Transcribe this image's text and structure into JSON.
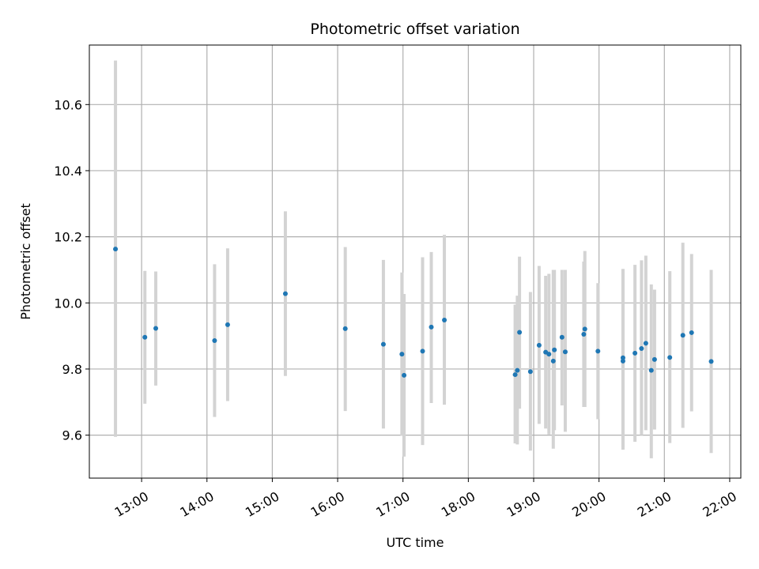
{
  "chart_data": {
    "type": "scatter",
    "title": "Photometric offset variation",
    "xlabel": "UTC time",
    "ylabel": "Photometric offset",
    "xlim_hours": [
      12.2,
      22.17
    ],
    "ylim": [
      9.47,
      10.78
    ],
    "x_ticks": [
      {
        "hour": 13,
        "label": "13:00"
      },
      {
        "hour": 14,
        "label": "14:00"
      },
      {
        "hour": 15,
        "label": "15:00"
      },
      {
        "hour": 16,
        "label": "16:00"
      },
      {
        "hour": 17,
        "label": "17:00"
      },
      {
        "hour": 18,
        "label": "18:00"
      },
      {
        "hour": 19,
        "label": "19:00"
      },
      {
        "hour": 20,
        "label": "20:00"
      },
      {
        "hour": 21,
        "label": "21:00"
      },
      {
        "hour": 22,
        "label": "22:00"
      }
    ],
    "y_ticks": [
      {
        "value": 9.6,
        "label": "9.6"
      },
      {
        "value": 9.8,
        "label": "9.8"
      },
      {
        "value": 10.0,
        "label": "10.0"
      },
      {
        "value": 10.2,
        "label": "10.2"
      },
      {
        "value": 10.4,
        "label": "10.4"
      },
      {
        "value": 10.6,
        "label": "10.6"
      }
    ],
    "grid": true,
    "colors": {
      "point": "#1f77b4",
      "errorbar": "#d3d3d3",
      "grid": "#b0b0b0"
    },
    "points": [
      {
        "x": "12:36",
        "y": 10.163,
        "err_low": 9.595,
        "err_high": 10.733
      },
      {
        "x": "13:03",
        "y": 9.896,
        "err_low": 9.695,
        "err_high": 10.097
      },
      {
        "x": "13:13",
        "y": 9.923,
        "err_low": 9.75,
        "err_high": 10.095
      },
      {
        "x": "14:07",
        "y": 9.886,
        "err_low": 9.655,
        "err_high": 10.117
      },
      {
        "x": "14:19",
        "y": 9.934,
        "err_low": 9.703,
        "err_high": 10.165
      },
      {
        "x": "15:12",
        "y": 10.028,
        "err_low": 9.779,
        "err_high": 10.277
      },
      {
        "x": "16:07",
        "y": 9.922,
        "err_low": 9.673,
        "err_high": 10.169
      },
      {
        "x": "16:42",
        "y": 9.875,
        "err_low": 9.62,
        "err_high": 10.13
      },
      {
        "x": "16:59",
        "y": 9.845,
        "err_low": 9.598,
        "err_high": 10.092
      },
      {
        "x": "17:01",
        "y": 9.781,
        "err_low": 9.535,
        "err_high": 10.027
      },
      {
        "x": "17:18",
        "y": 9.854,
        "err_low": 9.57,
        "err_high": 10.138
      },
      {
        "x": "17:26",
        "y": 9.927,
        "err_low": 9.697,
        "err_high": 10.154
      },
      {
        "x": "17:38",
        "y": 9.948,
        "err_low": 9.692,
        "err_high": 10.206
      },
      {
        "x": "18:43",
        "y": 9.783,
        "err_low": 9.575,
        "err_high": 9.995
      },
      {
        "x": "18:45",
        "y": 9.796,
        "err_low": 9.572,
        "err_high": 10.022
      },
      {
        "x": "18:47",
        "y": 9.911,
        "err_low": 9.68,
        "err_high": 10.14
      },
      {
        "x": "18:57",
        "y": 9.792,
        "err_low": 9.553,
        "err_high": 10.033
      },
      {
        "x": "19:05",
        "y": 9.872,
        "err_low": 9.634,
        "err_high": 10.112
      },
      {
        "x": "19:11",
        "y": 9.851,
        "err_low": 9.62,
        "err_high": 10.082
      },
      {
        "x": "19:14",
        "y": 9.845,
        "err_low": 9.602,
        "err_high": 10.088
      },
      {
        "x": "19:18",
        "y": 9.824,
        "err_low": 9.559,
        "err_high": 10.1
      },
      {
        "x": "19:19",
        "y": 9.858,
        "err_low": 9.615,
        "err_high": 10.1
      },
      {
        "x": "19:26",
        "y": 9.896,
        "err_low": 9.69,
        "err_high": 10.1
      },
      {
        "x": "19:29",
        "y": 9.852,
        "err_low": 9.61,
        "err_high": 10.1
      },
      {
        "x": "19:46",
        "y": 9.905,
        "err_low": 9.685,
        "err_high": 10.125
      },
      {
        "x": "19:47",
        "y": 9.921,
        "err_low": 9.685,
        "err_high": 10.157
      },
      {
        "x": "19:59",
        "y": 9.854,
        "err_low": 9.648,
        "err_high": 10.06
      },
      {
        "x": "20:22",
        "y": 9.824,
        "err_low": 9.556,
        "err_high": 10.103
      },
      {
        "x": "20:22",
        "y": 9.834,
        "err_low": 9.565,
        "err_high": 10.1
      },
      {
        "x": "20:33",
        "y": 9.848,
        "err_low": 9.58,
        "err_high": 10.115
      },
      {
        "x": "20:39",
        "y": 9.862,
        "err_low": 9.6,
        "err_high": 10.129
      },
      {
        "x": "20:43",
        "y": 9.878,
        "err_low": 9.615,
        "err_high": 10.143
      },
      {
        "x": "20:48",
        "y": 9.796,
        "err_low": 9.53,
        "err_high": 10.056
      },
      {
        "x": "20:51",
        "y": 9.829,
        "err_low": 9.617,
        "err_high": 10.04
      },
      {
        "x": "21:05",
        "y": 9.835,
        "err_low": 9.576,
        "err_high": 10.096
      },
      {
        "x": "21:17",
        "y": 9.902,
        "err_low": 9.622,
        "err_high": 10.182
      },
      {
        "x": "21:25",
        "y": 9.91,
        "err_low": 9.672,
        "err_high": 10.148
      },
      {
        "x": "21:43",
        "y": 9.823,
        "err_low": 9.546,
        "err_high": 10.1
      }
    ]
  }
}
